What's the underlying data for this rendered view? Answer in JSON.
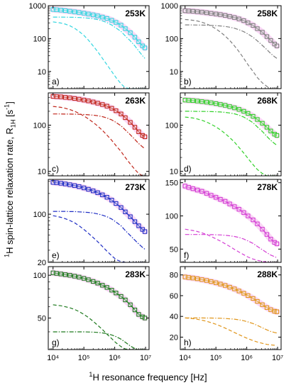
{
  "figure": {
    "ylabel_sup": "1",
    "ylabel_main": "H spin-lattice relaxation rate, R",
    "ylabel_sub": "1H",
    "ylabel_unit": " [s",
    "ylabel_unit_sup": "-1",
    "ylabel_end": "]",
    "xlabel_sup": "1",
    "xlabel_main": "H resonance frequency [Hz]"
  },
  "colors": {
    "253K": "#33d6e0",
    "258K": "#808080",
    "263K": "#c0261b",
    "268K": "#33d12b",
    "273K": "#1f2ec4",
    "278K": "#d43fd4",
    "283K": "#1e7a1e",
    "288K": "#e0951a",
    "band": "#f2a6e8"
  },
  "chart_data": [
    {
      "type": "scatter",
      "panel": "a)",
      "temperature": "253K",
      "yscale": "log",
      "x_axis": "log",
      "xlim": [
        7000,
        13000000
      ],
      "ylim": [
        3,
        1000
      ],
      "yticks": [
        10,
        100,
        1000
      ],
      "x": [
        10000,
        13000,
        18000,
        25000,
        35000,
        50000,
        70000,
        100000,
        140000,
        200000,
        280000,
        400000,
        560000,
        800000,
        1100000,
        1600000,
        2200000,
        3200000,
        4500000,
        6000000,
        8000000,
        9500000
      ],
      "y": [
        770,
        750,
        730,
        705,
        680,
        650,
        620,
        590,
        560,
        525,
        490,
        450,
        410,
        360,
        310,
        255,
        200,
        150,
        110,
        80,
        60,
        52
      ],
      "components": [
        {
          "style": "dash-dot",
          "y": [
            450,
            450,
            449,
            448,
            446,
            442,
            437,
            428,
            418,
            400,
            378,
            345,
            305,
            258,
            210,
            165,
            120,
            85,
            60,
            42,
            30,
            25
          ]
        },
        {
          "style": "dash",
          "y": [
            320,
            310,
            296,
            275,
            245,
            205,
            165,
            125,
            90,
            60,
            40,
            25,
            16,
            10,
            6.5,
            4.2,
            3.2,
            3,
            3,
            3,
            3,
            3
          ]
        }
      ]
    },
    {
      "type": "scatter",
      "panel": "b)",
      "temperature": "258K",
      "yscale": "log",
      "x_axis": "log",
      "xlim": [
        7000,
        13000000
      ],
      "ylim": [
        3,
        1000
      ],
      "yticks": [
        10,
        100,
        1000
      ],
      "x": [
        10000,
        13000,
        18000,
        25000,
        35000,
        50000,
        70000,
        100000,
        140000,
        200000,
        280000,
        400000,
        560000,
        800000,
        1100000,
        1600000,
        2200000,
        3200000,
        4500000,
        6000000,
        8000000,
        9500000
      ],
      "y": [
        700,
        690,
        675,
        655,
        635,
        610,
        585,
        560,
        535,
        505,
        470,
        435,
        395,
        350,
        300,
        250,
        200,
        155,
        115,
        88,
        68,
        60
      ],
      "components": [
        {
          "style": "dash-dot",
          "y": [
            260,
            260,
            259,
            258,
            257,
            255,
            252,
            248,
            242,
            233,
            222,
            206,
            186,
            162,
            137,
            110,
            85,
            62,
            46,
            35,
            28,
            25
          ]
        },
        {
          "style": "dash",
          "y": [
            380,
            372,
            360,
            342,
            315,
            280,
            240,
            197,
            158,
            120,
            88,
            60,
            40,
            25,
            16,
            10,
            6.5,
            4.5,
            3.5,
            3,
            3,
            3
          ]
        }
      ]
    },
    {
      "type": "scatter",
      "panel": "c)",
      "temperature": "263K",
      "yscale": "log",
      "x_axis": "log",
      "xlim": [
        7000,
        13000000
      ],
      "ylim": [
        8,
        500
      ],
      "yticks": [
        10,
        100
      ],
      "x": [
        10000,
        13000,
        18000,
        25000,
        35000,
        50000,
        70000,
        100000,
        140000,
        200000,
        280000,
        400000,
        560000,
        800000,
        1100000,
        1600000,
        2200000,
        3200000,
        4500000,
        6000000,
        8000000,
        9500000
      ],
      "y": [
        420,
        415,
        410,
        400,
        390,
        378,
        365,
        350,
        335,
        318,
        300,
        280,
        258,
        232,
        205,
        175,
        145,
        115,
        90,
        72,
        60,
        56
      ],
      "components": [
        {
          "style": "dash-dot",
          "y": [
            175,
            175,
            175,
            174,
            174,
            173,
            172,
            170,
            168,
            165,
            160,
            153,
            143,
            130,
            115,
            97,
            79,
            62,
            49,
            40,
            34,
            31
          ]
        },
        {
          "style": "dash",
          "y": [
            255,
            250,
            243,
            232,
            218,
            200,
            180,
            158,
            137,
            115,
            96,
            77,
            61,
            47,
            36,
            27,
            20,
            14.5,
            11,
            9,
            8,
            8
          ]
        }
      ]
    },
    {
      "type": "scatter",
      "panel": "d)",
      "temperature": "268K",
      "yscale": "log",
      "x_axis": "log",
      "xlim": [
        7000,
        13000000
      ],
      "ylim": [
        8,
        500
      ],
      "yticks": [
        10,
        100
      ],
      "x": [
        10000,
        13000,
        18000,
        25000,
        35000,
        50000,
        70000,
        100000,
        140000,
        200000,
        280000,
        400000,
        560000,
        800000,
        1100000,
        1600000,
        2200000,
        3200000,
        4500000,
        6000000,
        8000000,
        9500000
      ],
      "y": [
        350,
        345,
        340,
        333,
        325,
        316,
        305,
        293,
        281,
        268,
        253,
        237,
        220,
        200,
        180,
        156,
        133,
        110,
        90,
        75,
        64,
        60
      ],
      "components": [
        {
          "style": "dash-dot",
          "y": [
            200,
            200,
            200,
            199,
            199,
            198,
            197,
            195,
            193,
            189,
            184,
            176,
            165,
            150,
            133,
            113,
            92,
            73,
            57,
            47,
            40,
            37
          ]
        },
        {
          "style": "dash",
          "y": [
            150,
            147,
            143,
            136,
            128,
            117,
            105,
            92,
            79,
            66,
            54,
            43,
            33,
            25,
            19,
            14,
            11,
            9,
            8,
            8,
            8,
            8
          ]
        }
      ]
    },
    {
      "type": "scatter",
      "panel": "e)",
      "temperature": "273K",
      "yscale": "log",
      "x_axis": "log",
      "xlim": [
        7000,
        13000000
      ],
      "ylim": [
        20,
        320
      ],
      "yticks": [
        20,
        100
      ],
      "x": [
        10000,
        13000,
        18000,
        25000,
        35000,
        50000,
        70000,
        100000,
        140000,
        200000,
        280000,
        400000,
        560000,
        800000,
        1100000,
        1600000,
        2200000,
        3200000,
        4500000,
        6000000,
        8000000,
        9500000
      ],
      "y": [
        290,
        286,
        281,
        275,
        268,
        260,
        251,
        241,
        230,
        218,
        205,
        191,
        176,
        160,
        143,
        125,
        108,
        92,
        78,
        68,
        60,
        56
      ],
      "components": [
        {
          "style": "dash-dot",
          "y": [
            110,
            110,
            110,
            110,
            109,
            109,
            108,
            107,
            106,
            104,
            101,
            97,
            92,
            85,
            77,
            68,
            58,
            49,
            42,
            37,
            33,
            31
          ]
        },
        {
          "style": "dash",
          "y": [
            95,
            93,
            90,
            86,
            81,
            75,
            68,
            60,
            53,
            46,
            40,
            34,
            29,
            25,
            22,
            20.5,
            20,
            20,
            20,
            20,
            20,
            20
          ]
        }
      ]
    },
    {
      "type": "scatter",
      "panel": "f)",
      "temperature": "278K",
      "yscale": "linear",
      "x_axis": "log",
      "xlim": [
        7000,
        13000000
      ],
      "ylim": [
        30,
        155
      ],
      "yticks": [
        50,
        100,
        150
      ],
      "x": [
        10000,
        13000,
        18000,
        25000,
        35000,
        50000,
        70000,
        100000,
        140000,
        200000,
        280000,
        400000,
        560000,
        800000,
        1100000,
        1600000,
        2200000,
        3200000,
        4500000,
        6000000,
        8000000,
        9500000
      ],
      "y": [
        145,
        143,
        141,
        139,
        137,
        134,
        131,
        128,
        125,
        122,
        118,
        114,
        110,
        105,
        100,
        94,
        88,
        80,
        72,
        65,
        60,
        58
      ],
      "components": [
        {
          "style": "dash-dot",
          "y": [
            72,
            72,
            72,
            72,
            72,
            72,
            71.8,
            71.6,
            71.3,
            70.8,
            70.1,
            69,
            67.5,
            65.2,
            62.3,
            58.5,
            54,
            49,
            44.5,
            41,
            38.5,
            37
          ]
        },
        {
          "style": "dash",
          "y": [
            80,
            79,
            78,
            76.5,
            74.5,
            72,
            69,
            65.5,
            62,
            58,
            54,
            49.5,
            45.5,
            41.5,
            38,
            35,
            33,
            31.5,
            30.5,
            30,
            30,
            30
          ]
        }
      ]
    },
    {
      "type": "scatter",
      "panel": "g)",
      "temperature": "283K",
      "yscale": "log",
      "x_axis": "log",
      "xlim": [
        7000,
        13000000
      ],
      "ylim": [
        30,
        115
      ],
      "yticks": [
        50,
        100
      ],
      "x": [
        10000,
        13000,
        18000,
        25000,
        35000,
        50000,
        70000,
        100000,
        140000,
        200000,
        280000,
        400000,
        560000,
        800000,
        1100000,
        1600000,
        2200000,
        3200000,
        4500000,
        6000000,
        8000000,
        9500000
      ],
      "y": [
        104,
        103,
        102,
        101,
        100,
        98.5,
        97,
        95,
        93,
        90.5,
        88,
        85,
        82,
        78.5,
        75,
        71,
        67,
        62,
        57,
        53,
        51,
        50
      ],
      "components": [
        {
          "style": "dash-dot",
          "y": [
            40,
            40,
            40,
            40,
            40,
            40,
            40,
            40,
            39.9,
            39.8,
            39.6,
            39.3,
            38.8,
            38,
            37,
            35.5,
            33.8,
            31.8,
            30.5,
            30,
            30,
            30
          ]
        },
        {
          "style": "dash",
          "y": [
            62,
            61.5,
            61,
            60,
            59,
            57.5,
            55.5,
            53,
            50.5,
            47.5,
            44.5,
            41.5,
            38.5,
            35.8,
            33.5,
            31.5,
            30.3,
            30,
            30,
            30,
            30,
            30
          ]
        }
      ]
    },
    {
      "type": "scatter",
      "panel": "h)",
      "temperature": "288K",
      "yscale": "linear",
      "x_axis": "log",
      "xlim": [
        7000,
        13000000
      ],
      "ylim": [
        8,
        88
      ],
      "yticks": [
        20,
        40,
        60,
        80
      ],
      "x": [
        10000,
        13000,
        18000,
        25000,
        35000,
        50000,
        70000,
        100000,
        140000,
        200000,
        280000,
        400000,
        560000,
        800000,
        1100000,
        1600000,
        2200000,
        3200000,
        4500000,
        6000000,
        8000000,
        9500000
      ],
      "y": [
        78,
        77.5,
        77,
        76.3,
        75.5,
        74.6,
        73.6,
        72.4,
        71.2,
        69.8,
        68.2,
        66.5,
        64.5,
        62.3,
        60,
        57.3,
        54.5,
        51.3,
        48.5,
        46.5,
        45,
        44.5
      ],
      "components": [
        {
          "style": "dash-dot",
          "y": [
            38.5,
            38.5,
            38.5,
            38.5,
            38.5,
            38.4,
            38.4,
            38.3,
            38.2,
            38,
            37.7,
            37.3,
            36.7,
            35.8,
            34.7,
            33.1,
            31.3,
            29,
            27,
            25.5,
            24.5,
            24
          ]
        },
        {
          "style": "dash",
          "y": [
            38.5,
            38.2,
            37.8,
            37.2,
            36.4,
            35.3,
            34,
            32.4,
            30.7,
            28.7,
            26.7,
            24.5,
            22.4,
            20.3,
            18.5,
            16.7,
            15.3,
            14,
            13,
            12.5,
            12.2,
            12
          ]
        }
      ]
    }
  ]
}
